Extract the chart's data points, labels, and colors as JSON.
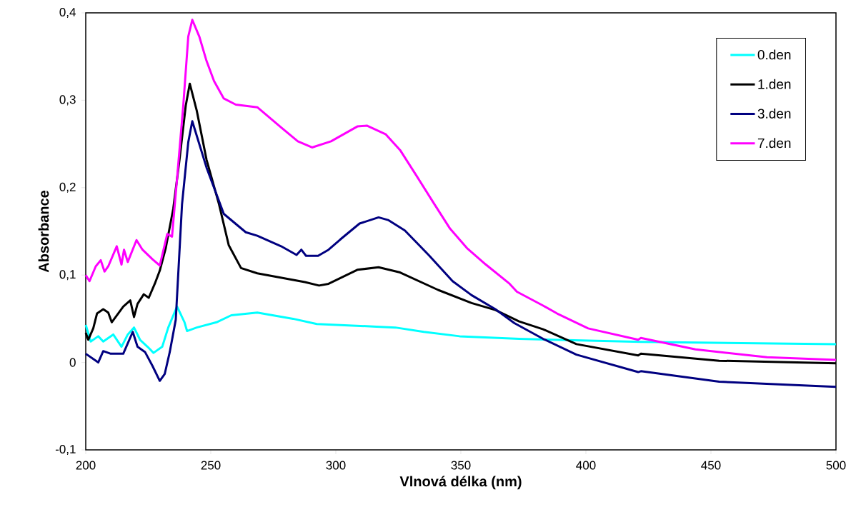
{
  "chart_data": {
    "type": "line",
    "xlabel": "Vlnová délka (nm)",
    "ylabel": "Absorbance",
    "xlim": [
      200,
      500
    ],
    "ylim": [
      -0.1,
      0.4
    ],
    "xticks": [
      200,
      250,
      300,
      350,
      400,
      450,
      500
    ],
    "yticks": [
      {
        "value": -0.1,
        "label": "-0,1"
      },
      {
        "value": 0,
        "label": "0"
      },
      {
        "value": 0.1,
        "label": "0,1"
      },
      {
        "value": 0.2,
        "label": "0,2"
      },
      {
        "value": 0.3,
        "label": "0,3"
      },
      {
        "value": 0.4,
        "label": "0,4"
      }
    ],
    "legend": "top right",
    "series": [
      {
        "name": "0.den",
        "color": "#00ffff",
        "x": [
          200,
          202,
          205,
          207,
          211,
          214.3,
          216.8,
          219.3,
          221.7,
          224.7,
          227.1,
          230.6,
          233,
          236.5,
          239.5,
          240.5,
          244.4,
          252.3,
          258.2,
          268.6,
          282.9,
          292.4,
          316.2,
          323.8,
          335.2,
          349.5,
          373.3,
          422,
          500
        ],
        "values": [
          0.043,
          0.024,
          0.03,
          0.024,
          0.032,
          0.018,
          0.032,
          0.04,
          0.026,
          0.018,
          0.011,
          0.018,
          0.04,
          0.064,
          0.046,
          0.036,
          0.04,
          0.046,
          0.054,
          0.057,
          0.05,
          0.044,
          0.041,
          0.04,
          0.035,
          0.03,
          0.027,
          0.0235,
          0.021
        ]
      },
      {
        "name": "1.den",
        "color": "#000000",
        "x": [
          200,
          201,
          203,
          204.5,
          207,
          209,
          210.4,
          215,
          217.8,
          219.3,
          220.7,
          223.2,
          225.2,
          227.6,
          229.6,
          232,
          235,
          237.5,
          240,
          241.6,
          244.4,
          248.3,
          253.3,
          257.2,
          262.1,
          268.6,
          278.1,
          287.6,
          293.3,
          297.1,
          308.6,
          317.1,
          325.7,
          340.9,
          354.3,
          363.8,
          373.3,
          382.9,
          396.2,
          420.9,
          422,
          453.3,
          500
        ],
        "values": [
          0.034,
          0.026,
          0.039,
          0.056,
          0.061,
          0.057,
          0.046,
          0.064,
          0.071,
          0.052,
          0.067,
          0.078,
          0.074,
          0.09,
          0.105,
          0.131,
          0.176,
          0.232,
          0.294,
          0.319,
          0.288,
          0.232,
          0.181,
          0.134,
          0.108,
          0.102,
          0.097,
          0.092,
          0.088,
          0.09,
          0.106,
          0.109,
          0.103,
          0.083,
          0.068,
          0.06,
          0.047,
          0.038,
          0.021,
          0.008,
          0.01,
          0.002,
          -0.001
        ]
      },
      {
        "name": "3.den",
        "color": "#000080",
        "x": [
          200,
          205,
          207,
          210,
          215,
          218.8,
          220.7,
          223.7,
          226.7,
          229.6,
          231.6,
          233.6,
          236,
          238.5,
          241,
          242.6,
          248.3,
          255.2,
          264,
          268.6,
          278.1,
          284.3,
          286.2,
          288.1,
          292.9,
          297.1,
          301.9,
          309.5,
          317.1,
          320.9,
          327.6,
          337.1,
          346.7,
          354.3,
          363.8,
          371.4,
          382.9,
          396.2,
          420.9,
          422,
          453.3,
          500
        ],
        "values": [
          0.01,
          0.0,
          0.013,
          0.01,
          0.01,
          0.035,
          0.018,
          0.012,
          -0.004,
          -0.021,
          -0.013,
          0.012,
          0.049,
          0.181,
          0.252,
          0.276,
          0.223,
          0.17,
          0.149,
          0.145,
          0.133,
          0.123,
          0.129,
          0.122,
          0.122,
          0.129,
          0.141,
          0.159,
          0.166,
          0.163,
          0.151,
          0.123,
          0.093,
          0.077,
          0.061,
          0.045,
          0.027,
          0.009,
          -0.011,
          -0.01,
          -0.022,
          -0.028
        ]
      },
      {
        "name": "7.den",
        "color": "#ff00ff",
        "x": [
          200,
          201.5,
          204,
          206,
          207.5,
          209,
          212.4,
          214.3,
          215.3,
          216.8,
          220.3,
          222.7,
          226.7,
          229.6,
          232.6,
          234.5,
          236.5,
          239,
          241,
          242.6,
          245.4,
          248.3,
          251.3,
          255.2,
          260,
          268.6,
          278.1,
          284.8,
          290.5,
          298.1,
          308.6,
          312.4,
          320,
          325.7,
          332.4,
          339,
          345.7,
          352.4,
          360,
          369.5,
          372.4,
          382.9,
          388.5,
          400.9,
          420.9,
          422,
          443.8,
          472.4,
          500
        ],
        "values": [
          0.1,
          0.093,
          0.11,
          0.117,
          0.104,
          0.11,
          0.133,
          0.112,
          0.129,
          0.115,
          0.14,
          0.129,
          0.118,
          0.111,
          0.147,
          0.144,
          0.21,
          0.294,
          0.373,
          0.392,
          0.373,
          0.345,
          0.322,
          0.302,
          0.295,
          0.292,
          0.269,
          0.253,
          0.246,
          0.253,
          0.27,
          0.271,
          0.261,
          0.243,
          0.213,
          0.183,
          0.153,
          0.131,
          0.112,
          0.09,
          0.081,
          0.065,
          0.056,
          0.039,
          0.026,
          0.028,
          0.015,
          0.006,
          0.003
        ]
      }
    ]
  }
}
